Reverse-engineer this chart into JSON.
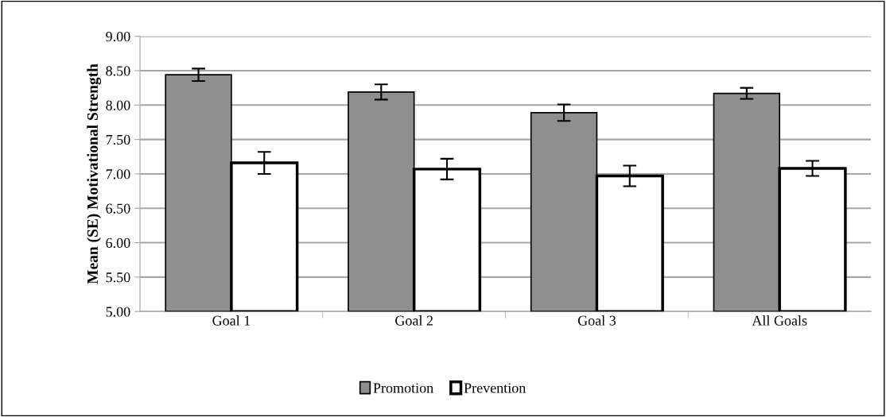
{
  "chart_data": {
    "type": "bar",
    "ylabel": "Mean (SE) Motivational Strength",
    "categories": [
      "Goal 1",
      "Goal 2",
      "Goal 3",
      "All Goals"
    ],
    "series": [
      {
        "name": "Promotion",
        "color": "#8f8f8f",
        "values": [
          8.44,
          8.19,
          7.89,
          8.17
        ],
        "errors": [
          0.09,
          0.11,
          0.12,
          0.08
        ]
      },
      {
        "name": "Prevention",
        "color": "#ffffff",
        "values": [
          7.16,
          7.07,
          6.97,
          7.08
        ],
        "errors": [
          0.16,
          0.15,
          0.15,
          0.11
        ]
      }
    ],
    "ylim": [
      5,
      9
    ],
    "yticks": [
      {
        "value": 5,
        "label": "5.00"
      },
      {
        "value": 5.5,
        "label": "5.50"
      },
      {
        "value": 6,
        "label": "6.00"
      },
      {
        "value": 6.5,
        "label": "6.50"
      },
      {
        "value": 7,
        "label": "7.00"
      },
      {
        "value": 7.5,
        "label": "7.50"
      },
      {
        "value": 8,
        "label": "8.00"
      },
      {
        "value": 8.5,
        "label": "8.50"
      },
      {
        "value": 9,
        "label": "9.00"
      }
    ],
    "grid": "y",
    "legend": "bottom"
  }
}
